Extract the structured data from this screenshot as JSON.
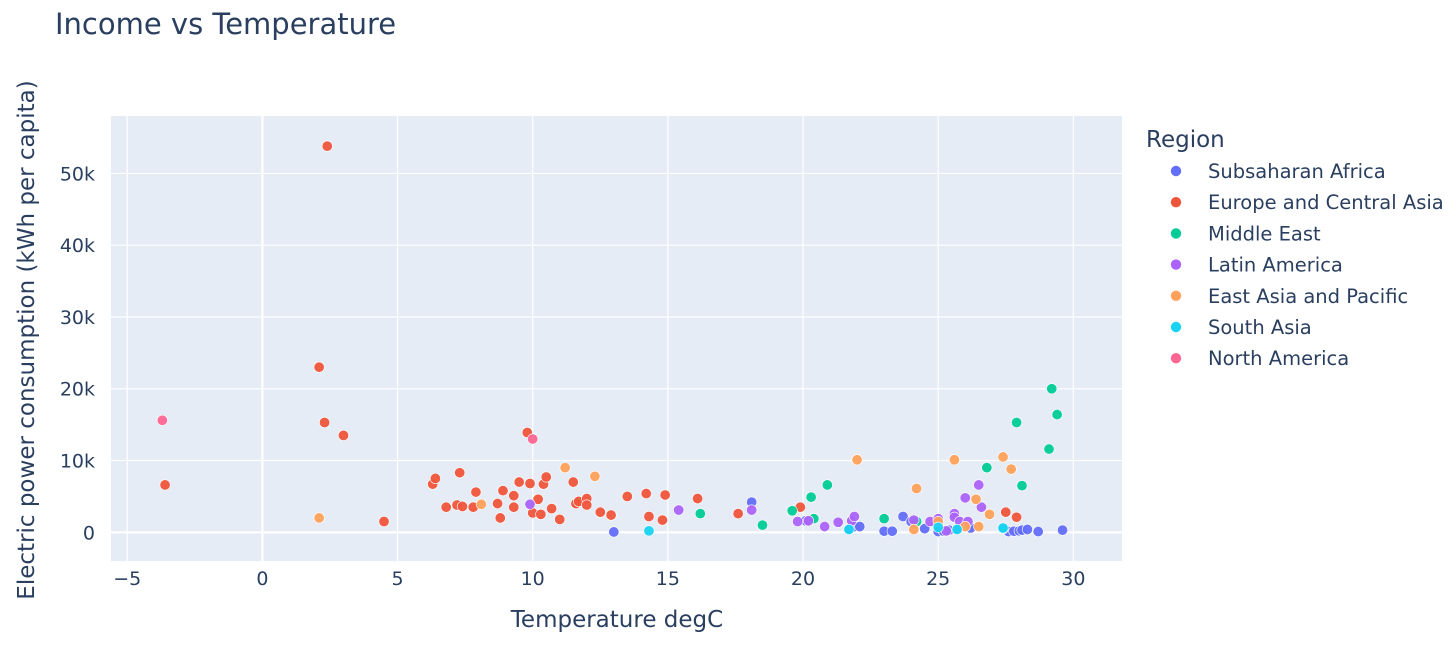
{
  "chart_data": {
    "type": "scatter",
    "title": "Income vs Temperature",
    "xlabel": "Temperature degC",
    "ylabel": "Electric power consumption (kWh per capita)",
    "xlim": [
      -5.6,
      31.8
    ],
    "ylim": [
      -4000,
      58000
    ],
    "x_ticks": [
      -5,
      0,
      5,
      10,
      15,
      20,
      25,
      30
    ],
    "x_tick_labels": [
      "−5",
      "0",
      "5",
      "10",
      "15",
      "20",
      "25",
      "30"
    ],
    "y_ticks": [
      0,
      10000,
      20000,
      30000,
      40000,
      50000
    ],
    "y_tick_labels": [
      "0",
      "10k",
      "20k",
      "30k",
      "40k",
      "50k"
    ],
    "grid": true,
    "background_color": "#e5ecf6",
    "legend_title": "Region",
    "legend_position": "right",
    "series": [
      {
        "name": "Subsaharan Africa",
        "color": "#636efa",
        "points": [
          [
            13.0,
            50
          ],
          [
            18.1,
            4200
          ],
          [
            20.1,
            1600
          ],
          [
            21.7,
            500
          ],
          [
            21.9,
            800
          ],
          [
            22.1,
            800
          ],
          [
            23.0,
            150
          ],
          [
            23.3,
            150
          ],
          [
            23.7,
            2200
          ],
          [
            24.0,
            1500
          ],
          [
            24.5,
            500
          ],
          [
            25.0,
            100
          ],
          [
            25.2,
            150
          ],
          [
            25.4,
            300
          ],
          [
            25.7,
            400
          ],
          [
            26.2,
            600
          ],
          [
            27.6,
            100
          ],
          [
            27.8,
            150
          ],
          [
            28.0,
            200
          ],
          [
            28.1,
            300
          ],
          [
            28.3,
            400
          ],
          [
            28.7,
            100
          ],
          [
            29.6,
            300
          ]
        ]
      },
      {
        "name": "Europe and Central Asia",
        "color": "#ef553b",
        "points": [
          [
            2.4,
            53800
          ],
          [
            2.1,
            23000
          ],
          [
            2.3,
            15300
          ],
          [
            3.0,
            13500
          ],
          [
            -3.6,
            6600
          ],
          [
            4.5,
            1500
          ],
          [
            6.3,
            6700
          ],
          [
            6.4,
            7500
          ],
          [
            6.8,
            3500
          ],
          [
            7.2,
            3800
          ],
          [
            7.3,
            8300
          ],
          [
            7.4,
            3600
          ],
          [
            7.8,
            3500
          ],
          [
            7.9,
            5600
          ],
          [
            8.7,
            4000
          ],
          [
            8.8,
            2000
          ],
          [
            8.9,
            5800
          ],
          [
            9.3,
            3500
          ],
          [
            9.3,
            5100
          ],
          [
            9.5,
            7000
          ],
          [
            9.8,
            13900
          ],
          [
            9.9,
            6800
          ],
          [
            10.0,
            2700
          ],
          [
            10.2,
            4600
          ],
          [
            10.3,
            2500
          ],
          [
            10.4,
            6700
          ],
          [
            10.5,
            7700
          ],
          [
            10.7,
            3300
          ],
          [
            11.0,
            1800
          ],
          [
            11.5,
            7000
          ],
          [
            11.6,
            4000
          ],
          [
            11.7,
            4300
          ],
          [
            12.0,
            4700
          ],
          [
            12.0,
            3800
          ],
          [
            12.5,
            2800
          ],
          [
            12.9,
            2400
          ],
          [
            13.5,
            5000
          ],
          [
            14.2,
            5400
          ],
          [
            14.3,
            2200
          ],
          [
            14.8,
            1700
          ],
          [
            14.9,
            5200
          ],
          [
            16.1,
            4700
          ],
          [
            17.6,
            2600
          ],
          [
            19.9,
            3500
          ],
          [
            27.5,
            2800
          ],
          [
            27.9,
            2100
          ]
        ]
      },
      {
        "name": "Middle East",
        "color": "#00cc96",
        "points": [
          [
            16.2,
            2600
          ],
          [
            18.5,
            1000
          ],
          [
            19.6,
            3000
          ],
          [
            20.3,
            4900
          ],
          [
            20.4,
            1900
          ],
          [
            20.9,
            6600
          ],
          [
            23.0,
            1900
          ],
          [
            24.2,
            1500
          ],
          [
            26.8,
            9000
          ],
          [
            27.4,
            500
          ],
          [
            27.9,
            15300
          ],
          [
            28.1,
            6500
          ],
          [
            29.1,
            11600
          ],
          [
            29.2,
            20000
          ],
          [
            29.4,
            16400
          ]
        ]
      },
      {
        "name": "Latin America",
        "color": "#ab63fa",
        "points": [
          [
            9.9,
            3900
          ],
          [
            15.4,
            3100
          ],
          [
            18.1,
            3100
          ],
          [
            19.8,
            1500
          ],
          [
            20.2,
            1600
          ],
          [
            20.8,
            800
          ],
          [
            21.3,
            1400
          ],
          [
            21.8,
            1600
          ],
          [
            21.9,
            2200
          ],
          [
            24.1,
            1700
          ],
          [
            24.7,
            1500
          ],
          [
            25.0,
            1900
          ],
          [
            25.3,
            200
          ],
          [
            25.6,
            2600
          ],
          [
            25.6,
            2100
          ],
          [
            25.8,
            1500
          ],
          [
            26.0,
            4800
          ],
          [
            26.1,
            1500
          ],
          [
            26.5,
            6600
          ],
          [
            26.6,
            3500
          ]
        ]
      },
      {
        "name": "East Asia and Pacific",
        "color": "#ffa15a",
        "points": [
          [
            2.1,
            2000
          ],
          [
            8.1,
            3900
          ],
          [
            11.2,
            9000
          ],
          [
            12.3,
            7800
          ],
          [
            22.0,
            10100
          ],
          [
            24.1,
            400
          ],
          [
            24.2,
            6100
          ],
          [
            25.0,
            1500
          ],
          [
            25.6,
            10100
          ],
          [
            26.0,
            800
          ],
          [
            26.4,
            4600
          ],
          [
            26.5,
            800
          ],
          [
            26.9,
            2500
          ],
          [
            27.4,
            10500
          ],
          [
            27.7,
            8800
          ]
        ]
      },
      {
        "name": "South Asia",
        "color": "#19d3f3",
        "points": [
          [
            14.3,
            200
          ],
          [
            21.7,
            400
          ],
          [
            25.0,
            700
          ],
          [
            25.7,
            400
          ],
          [
            27.4,
            600
          ]
        ]
      },
      {
        "name": "North America",
        "color": "#ff6692",
        "points": [
          [
            -3.7,
            15600
          ],
          [
            10.0,
            13000
          ]
        ]
      }
    ]
  }
}
